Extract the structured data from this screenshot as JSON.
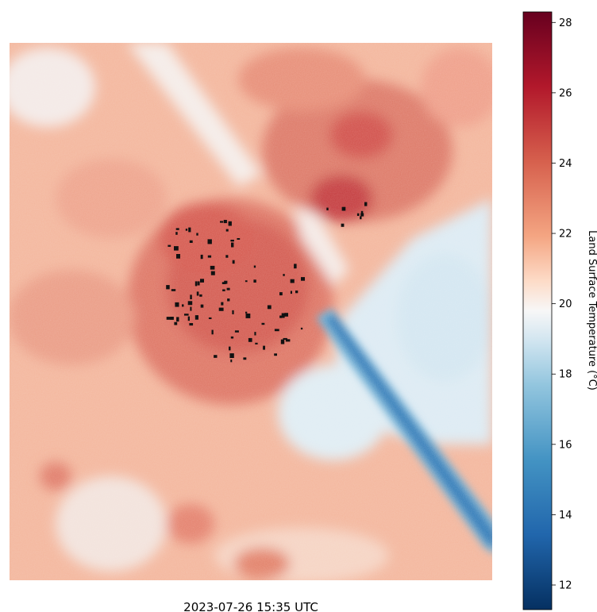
{
  "map": {
    "caption": "2023-07-26 15:35 UTC",
    "colormap": "RdBu_r",
    "colors": {
      "cold": "#053061",
      "cool": "#2166ac",
      "mild_cool": "#92c5de",
      "neutral": "#f7f7f7",
      "mild_warm": "#f4a582",
      "warm": "#d6604d",
      "hot": "#b2182b",
      "hottest": "#67001f",
      "masked": "#111111"
    }
  },
  "colorbar": {
    "label": "Land Surface Temperature (°C)",
    "vmin": 11.3,
    "vmax": 28.3,
    "ticks": [
      "12",
      "14",
      "16",
      "18",
      "20",
      "22",
      "24",
      "26",
      "28"
    ]
  }
}
